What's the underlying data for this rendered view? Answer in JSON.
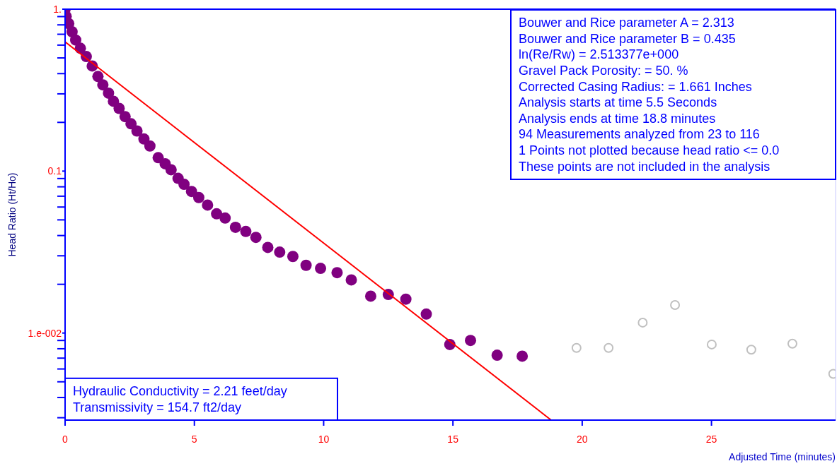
{
  "chart_data": {
    "type": "scatter",
    "xlabel": "Adjusted Time (minutes)",
    "ylabel": "Head Ratio (Ht/Ho)",
    "log": "y",
    "xlim": [
      0,
      29.8
    ],
    "xticks": [
      0,
      5,
      10,
      15,
      20,
      25
    ],
    "ylim": [
      0.0029,
      1
    ],
    "yticks": [
      {
        "value": 1,
        "label": "1."
      },
      {
        "value": 0.9,
        "label": null
      },
      {
        "value": 0.8,
        "label": null
      },
      {
        "value": 0.7,
        "label": null
      },
      {
        "value": 0.6,
        "label": null
      },
      {
        "value": 0.5,
        "label": null
      },
      {
        "value": 0.4,
        "label": null
      },
      {
        "value": 0.3,
        "label": null
      },
      {
        "value": 0.2,
        "label": null
      },
      0.1,
      {
        "value": 0.09,
        "label": null
      },
      {
        "value": 0.08,
        "label": null
      },
      {
        "value": 0.07,
        "label": null
      },
      {
        "value": 0.06,
        "label": null
      },
      {
        "value": 0.05,
        "label": null
      },
      {
        "value": 0.04,
        "label": null
      },
      {
        "value": 0.03,
        "label": null
      },
      {
        "value": 0.02,
        "label": null
      },
      {
        "value": 0.01,
        "label": "1.e-002"
      },
      {
        "value": 0.009,
        "label": null
      },
      {
        "value": 0.008,
        "label": null
      },
      {
        "value": 0.007,
        "label": null
      },
      {
        "value": 0.006,
        "label": null
      },
      {
        "value": 0.005,
        "label": null
      },
      {
        "value": 0.004,
        "label": null
      },
      {
        "value": 0.003,
        "label": null
      }
    ],
    "series": [
      {
        "marker": "circle",
        "color": "#800080",
        "x": [
          0,
          0.04,
          0.14,
          0.27,
          0.41,
          0.59,
          0.82,
          1.05,
          1.27,
          1.46,
          1.68,
          1.87,
          2.09,
          2.32,
          2.55,
          2.78,
          3.05,
          3.28,
          3.6,
          3.87,
          4.1,
          4.37,
          4.6,
          4.89,
          5.17,
          5.51,
          5.86,
          6.19,
          6.59,
          6.99,
          7.38,
          7.84,
          8.3,
          8.81,
          9.32,
          9.88,
          10.52,
          11.07,
          11.82,
          12.5,
          13.18,
          13.97,
          14.88,
          15.68,
          16.71,
          17.68
        ],
        "values": [
          1,
          0.902,
          0.815,
          0.725,
          0.645,
          0.574,
          0.51,
          0.446,
          0.384,
          0.341,
          0.303,
          0.27,
          0.244,
          0.217,
          0.196,
          0.177,
          0.158,
          0.143,
          0.121,
          0.111,
          0.102,
          0.0902,
          0.0829,
          0.0749,
          0.0687,
          0.0617,
          0.0545,
          0.0513,
          0.045,
          0.0424,
          0.039,
          0.0338,
          0.0316,
          0.0297,
          0.0262,
          0.0251,
          0.0236,
          0.0213,
          0.0169,
          0.0173,
          0.0162,
          0.0131,
          0.0085,
          0.009,
          0.0073,
          0.0072
        ]
      },
      {
        "marker": "circle",
        "color": "#c0c0c0",
        "x": [
          19.78,
          21.02,
          22.34,
          23.59,
          25.01,
          26.54,
          28.13,
          29.71
        ],
        "values": [
          0.0081,
          0.0081,
          0.0116,
          0.0149,
          0.0085,
          0.0079,
          0.0086,
          0.0056
        ]
      },
      {
        "type": "line",
        "color": "#ff0000",
        "x": [
          0,
          18.8
        ],
        "values": [
          0.628,
          0.0029
        ]
      }
    ],
    "annotations": [
      "Bouwer and Rice parameter A = 2.313\nBouwer and Rice parameter B = 0.435\nln(Re/Rw) = 2.513377e+000\nGravel Pack Porosity: = 50. %\nCorrected Casing Radius: = 1.661 Inches\nAnalysis starts at time 5.5 Seconds\nAnalysis ends at time 18.8 minutes\n94 Measurements analyzed from 23 to 116\n1 Points not plotted because head ratio <= 0.0\nThese points are not included in the analysis",
      "Hydraulic Conductivity = 2.21 feet/day\nTransmissivity = 154.7 ft2/day"
    ]
  }
}
